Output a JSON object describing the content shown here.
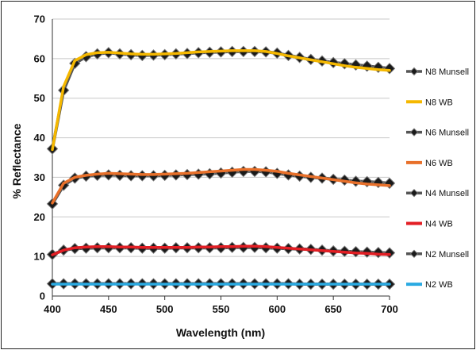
{
  "chart_data": {
    "type": "line",
    "xlabel": "Wavelength (nm)",
    "ylabel": "% Reflectance",
    "xlim": [
      400,
      700
    ],
    "ylim": [
      0,
      70
    ],
    "xticks": [
      400,
      450,
      500,
      550,
      600,
      650,
      700
    ],
    "yticks": [
      0,
      10,
      20,
      30,
      40,
      50,
      60,
      70
    ],
    "grid": "horizontal",
    "legend_position": "right",
    "x": [
      400,
      410,
      420,
      430,
      440,
      450,
      460,
      470,
      480,
      490,
      500,
      510,
      520,
      530,
      540,
      550,
      560,
      570,
      580,
      590,
      600,
      610,
      620,
      630,
      640,
      650,
      660,
      670,
      680,
      690,
      700
    ],
    "series": [
      {
        "name": "N8 Munsell",
        "color": "#222222",
        "style": "marker",
        "values": [
          37.2,
          52.0,
          58.8,
          60.5,
          61.2,
          61.5,
          61.2,
          61.0,
          60.8,
          60.9,
          61.0,
          61.2,
          61.3,
          61.5,
          61.6,
          61.7,
          61.8,
          61.8,
          61.8,
          61.7,
          61.4,
          60.8,
          60.3,
          59.8,
          59.4,
          59.0,
          58.7,
          58.4,
          58.1,
          57.8,
          57.5
        ]
      },
      {
        "name": "N8 WB",
        "color": "#F5B800",
        "style": "line",
        "values": [
          37.0,
          53.0,
          59.5,
          61.0,
          61.5,
          61.6,
          61.4,
          61.2,
          61.1,
          61.1,
          61.2,
          61.3,
          61.5,
          61.7,
          61.8,
          61.9,
          62.0,
          62.0,
          62.0,
          61.8,
          61.3,
          60.7,
          60.2,
          59.7,
          59.2,
          58.7,
          58.2,
          57.8,
          57.5,
          57.2,
          57.0
        ]
      },
      {
        "name": "N6 Munsell",
        "color": "#222222",
        "style": "marker",
        "values": [
          23.3,
          28.0,
          29.8,
          30.3,
          30.5,
          30.6,
          30.5,
          30.4,
          30.4,
          30.4,
          30.5,
          30.6,
          30.7,
          30.8,
          30.9,
          31.1,
          31.3,
          31.5,
          31.5,
          31.4,
          31.0,
          30.6,
          30.3,
          30.0,
          29.8,
          29.5,
          29.3,
          29.0,
          28.9,
          28.7,
          28.5
        ]
      },
      {
        "name": "N6 WB",
        "color": "#E8702A",
        "style": "line",
        "values": [
          23.5,
          28.5,
          30.0,
          30.5,
          30.8,
          31.0,
          30.9,
          30.8,
          30.7,
          30.7,
          30.8,
          30.9,
          31.0,
          31.2,
          31.4,
          31.6,
          31.8,
          32.0,
          32.0,
          31.8,
          31.5,
          31.0,
          30.6,
          30.2,
          29.8,
          29.4,
          29.0,
          28.6,
          28.3,
          28.1,
          27.9
        ]
      },
      {
        "name": "N4 Munsell",
        "color": "#222222",
        "style": "marker",
        "values": [
          10.5,
          11.6,
          12.0,
          12.1,
          12.2,
          12.2,
          12.2,
          12.2,
          12.1,
          12.1,
          12.1,
          12.2,
          12.2,
          12.2,
          12.2,
          12.2,
          12.3,
          12.3,
          12.3,
          12.2,
          12.1,
          12.0,
          11.9,
          11.8,
          11.6,
          11.4,
          11.3,
          11.2,
          11.1,
          11.0,
          10.9
        ]
      },
      {
        "name": "N4 WB",
        "color": "#E31E24",
        "style": "line",
        "values": [
          10.4,
          11.6,
          12.2,
          12.4,
          12.5,
          12.5,
          12.4,
          12.4,
          12.3,
          12.3,
          12.3,
          12.3,
          12.3,
          12.4,
          12.4,
          12.5,
          12.5,
          12.6,
          12.6,
          12.5,
          12.3,
          12.1,
          11.9,
          11.7,
          11.5,
          11.3,
          11.1,
          10.9,
          10.8,
          10.6,
          10.5
        ]
      },
      {
        "name": "N2 Munsell",
        "color": "#222222",
        "style": "marker",
        "values": [
          3.1,
          3.1,
          3.1,
          3.1,
          3.1,
          3.1,
          3.1,
          3.1,
          3.1,
          3.1,
          3.1,
          3.1,
          3.1,
          3.1,
          3.1,
          3.1,
          3.1,
          3.1,
          3.1,
          3.1,
          3.1,
          3.1,
          3.0,
          3.0,
          3.0,
          3.0,
          3.0,
          3.0,
          3.0,
          3.0,
          3.0
        ]
      },
      {
        "name": "N2 WB",
        "color": "#2AAAE2",
        "style": "line",
        "values": [
          3.0,
          3.0,
          3.0,
          3.0,
          3.0,
          3.0,
          3.0,
          3.0,
          3.0,
          3.0,
          3.0,
          3.0,
          3.0,
          3.0,
          3.0,
          3.0,
          3.0,
          3.0,
          3.0,
          3.0,
          3.0,
          3.0,
          3.0,
          3.0,
          3.0,
          3.0,
          3.0,
          3.0,
          3.0,
          3.0,
          3.0
        ]
      }
    ]
  }
}
